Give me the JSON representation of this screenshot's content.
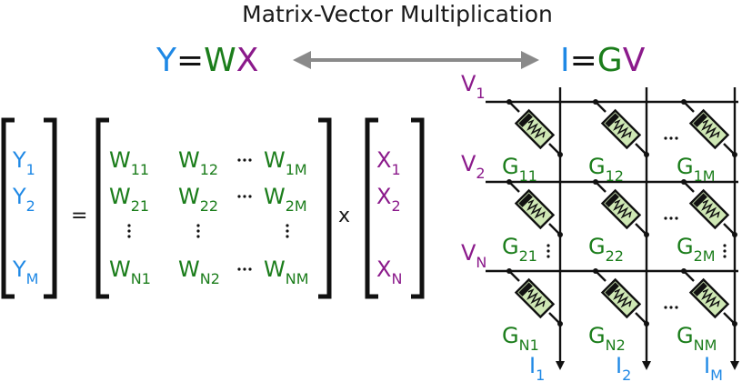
{
  "colors": {
    "blue": "#1e88e5",
    "green": "#1b7d1b",
    "purple": "#8b1a8b",
    "arrow": "#8a8a8a",
    "chip_fill": "#cfe8b5",
    "dark": "#111111"
  },
  "title": "Matrix-Vector Multiplication",
  "equation_left": {
    "y": "Y",
    "eq": "=",
    "w": "W",
    "x": "X"
  },
  "equation_right": {
    "i": "I",
    "eq": "=",
    "g": "G",
    "v": "V"
  },
  "matrix_equation": {
    "y_vector": [
      {
        "base": "Y",
        "sub": "1"
      },
      {
        "base": "Y",
        "sub": "2"
      },
      {
        "base": "Y",
        "sub": "M"
      }
    ],
    "equals": "=",
    "w_matrix": {
      "row1": [
        {
          "base": "W",
          "sub": "11"
        },
        {
          "base": "W",
          "sub": "12"
        },
        {
          "base": "W",
          "sub": "1M"
        }
      ],
      "row2": [
        {
          "base": "W",
          "sub": "21"
        },
        {
          "base": "W",
          "sub": "22"
        },
        {
          "base": "W",
          "sub": "2M"
        }
      ],
      "rowN": [
        {
          "base": "W",
          "sub": "N1"
        },
        {
          "base": "W",
          "sub": "N2"
        },
        {
          "base": "W",
          "sub": "NM"
        }
      ]
    },
    "times": "x",
    "x_vector": [
      {
        "base": "X",
        "sub": "1"
      },
      {
        "base": "X",
        "sub": "2"
      },
      {
        "base": "X",
        "sub": "N"
      }
    ]
  },
  "crossbar": {
    "voltages": [
      {
        "base": "V",
        "sub": "1"
      },
      {
        "base": "V",
        "sub": "2"
      },
      {
        "base": "V",
        "sub": "N"
      }
    ],
    "currents": [
      {
        "base": "I",
        "sub": "1"
      },
      {
        "base": "I",
        "sub": "2"
      },
      {
        "base": "I",
        "sub": "M"
      }
    ],
    "conductances": [
      {
        "base": "G",
        "sub": "11"
      },
      {
        "base": "G",
        "sub": "12"
      },
      {
        "base": "G",
        "sub": "1M"
      },
      {
        "base": "G",
        "sub": "21"
      },
      {
        "base": "G",
        "sub": "22"
      },
      {
        "base": "G",
        "sub": "2M"
      },
      {
        "base": "G",
        "sub": "N1"
      },
      {
        "base": "G",
        "sub": "N2"
      },
      {
        "base": "G",
        "sub": "NM"
      }
    ]
  },
  "icons": [
    "double-arrow-icon",
    "memristor-icon"
  ]
}
